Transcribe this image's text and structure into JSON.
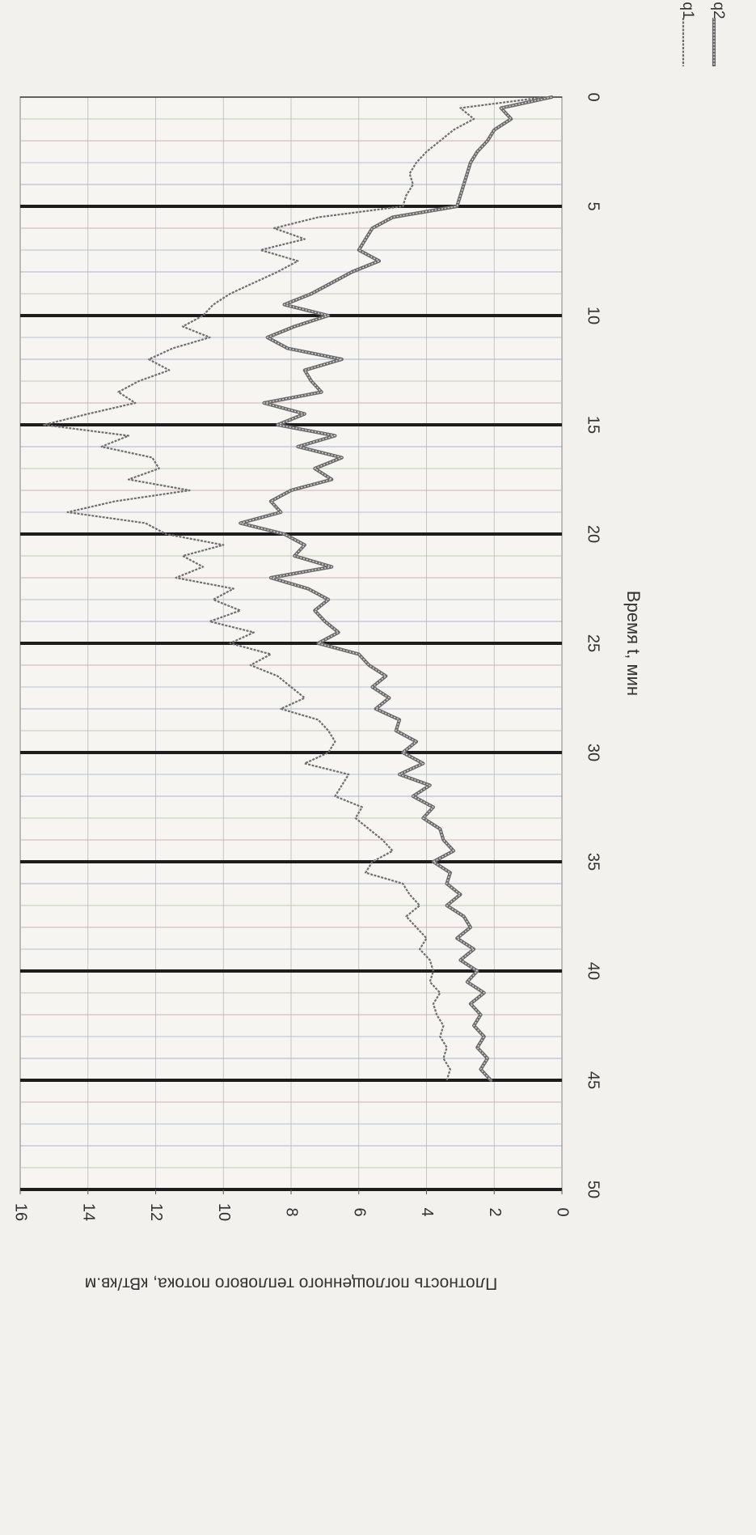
{
  "chart_data": {
    "type": "line",
    "orientation": "rotated-90",
    "xlabel": "Время t, мин",
    "ylabel": "Плотность поглощенного теплового потока, кВт/кв.м",
    "xlim": [
      0,
      50
    ],
    "ylim": [
      0,
      16
    ],
    "x_ticks": [
      "0",
      "5",
      "10",
      "15",
      "20",
      "25",
      "30",
      "35",
      "40",
      "45",
      "50"
    ],
    "y_ticks": [
      "0",
      "2",
      "4",
      "6",
      "8",
      "10",
      "12",
      "14",
      "16"
    ],
    "grid": true,
    "legend_position": "top-right",
    "series": [
      {
        "name": "q1",
        "color": "#6f6f6f",
        "style": "thin-dotted",
        "x": [
          0,
          0.5,
          1,
          1.5,
          2,
          2.5,
          3,
          3.5,
          4,
          4.5,
          5,
          5.5,
          6,
          6.5,
          7,
          7.5,
          8,
          8.5,
          9,
          9.5,
          10,
          10.5,
          11,
          11.5,
          12,
          12.5,
          13,
          13.5,
          14,
          14.5,
          15,
          15.5,
          16,
          16.5,
          17,
          17.5,
          18,
          18.5,
          19,
          19.5,
          20,
          20.5,
          21,
          21.5,
          22,
          22.5,
          23,
          23.5,
          24,
          24.5,
          25,
          25.5,
          26,
          26.5,
          27,
          27.5,
          28,
          28.5,
          29,
          29.5,
          30,
          30.5,
          31,
          31.5,
          32,
          32.5,
          33,
          33.5,
          34,
          34.5,
          35,
          35.5,
          36,
          36.5,
          37,
          37.5,
          38,
          38.5,
          39,
          39.5,
          40,
          40.5,
          41,
          41.5,
          42,
          42.5,
          43,
          43.5,
          44,
          44.5,
          45
        ],
        "values": [
          0.5,
          3.0,
          2.6,
          3.2,
          3.6,
          4.0,
          4.3,
          4.5,
          4.4,
          4.6,
          4.7,
          7.2,
          8.5,
          7.6,
          8.9,
          7.8,
          8.4,
          9.1,
          9.8,
          10.3,
          10.6,
          11.2,
          10.4,
          11.5,
          12.2,
          11.6,
          12.5,
          13.1,
          12.6,
          14.0,
          15.3,
          12.8,
          13.6,
          12.1,
          11.9,
          12.8,
          11.0,
          13.2,
          14.6,
          12.3,
          11.7,
          10.0,
          11.2,
          10.6,
          11.4,
          9.7,
          10.3,
          9.5,
          10.4,
          9.1,
          9.8,
          8.6,
          9.2,
          8.4,
          8.0,
          7.6,
          8.3,
          7.2,
          6.9,
          6.7,
          6.9,
          7.6,
          6.3,
          6.5,
          6.7,
          5.9,
          6.1,
          5.7,
          5.3,
          5.0,
          5.6,
          5.8,
          4.7,
          4.5,
          4.2,
          4.6,
          4.3,
          4.0,
          4.2,
          3.9,
          3.8,
          3.9,
          3.6,
          3.8,
          3.7,
          3.5,
          3.6,
          3.4,
          3.5,
          3.3,
          3.4
        ]
      },
      {
        "name": "q2",
        "color": "#6a6a6a",
        "style": "thick-hatched",
        "x": [
          0,
          0.5,
          1,
          1.5,
          2,
          2.5,
          3,
          3.5,
          4,
          4.5,
          5,
          5.5,
          6,
          6.5,
          7,
          7.5,
          8,
          8.5,
          9,
          9.5,
          10,
          10.5,
          11,
          11.5,
          12,
          12.5,
          13,
          13.5,
          14,
          14.5,
          15,
          15.5,
          16,
          16.5,
          17,
          17.5,
          18,
          18.5,
          19,
          19.5,
          20,
          20.5,
          21,
          21.5,
          22,
          22.5,
          23,
          23.5,
          24,
          24.5,
          25,
          25.5,
          26,
          26.5,
          27,
          27.5,
          28,
          28.5,
          29,
          29.5,
          30,
          30.5,
          31,
          31.5,
          32,
          32.5,
          33,
          33.5,
          34,
          34.5,
          35,
          35.5,
          36,
          36.5,
          37,
          37.5,
          38,
          38.5,
          39,
          39.5,
          40,
          40.5,
          41,
          41.5,
          42,
          42.5,
          43,
          43.5,
          44,
          44.5,
          45
        ],
        "values": [
          0.3,
          1.8,
          1.5,
          2.0,
          2.2,
          2.5,
          2.7,
          2.8,
          2.9,
          3.0,
          3.1,
          5.0,
          5.6,
          5.8,
          6.0,
          5.4,
          6.2,
          6.8,
          7.4,
          8.2,
          6.9,
          7.9,
          8.7,
          8.1,
          6.5,
          7.6,
          7.4,
          7.1,
          8.8,
          7.6,
          8.4,
          6.7,
          7.8,
          6.5,
          7.3,
          6.8,
          8.0,
          8.6,
          8.3,
          9.5,
          8.2,
          7.6,
          7.9,
          6.8,
          8.6,
          7.5,
          6.9,
          7.3,
          7.0,
          6.6,
          7.2,
          6.0,
          5.7,
          5.2,
          5.6,
          5.1,
          5.5,
          4.8,
          4.9,
          4.3,
          4.7,
          4.1,
          4.8,
          3.9,
          4.4,
          3.8,
          4.1,
          3.6,
          3.5,
          3.2,
          3.8,
          3.3,
          3.4,
          3.0,
          3.4,
          2.9,
          2.7,
          3.1,
          2.6,
          3.0,
          2.5,
          2.8,
          2.3,
          2.7,
          2.4,
          2.6,
          2.3,
          2.5,
          2.2,
          2.4,
          2.1
        ]
      }
    ]
  }
}
